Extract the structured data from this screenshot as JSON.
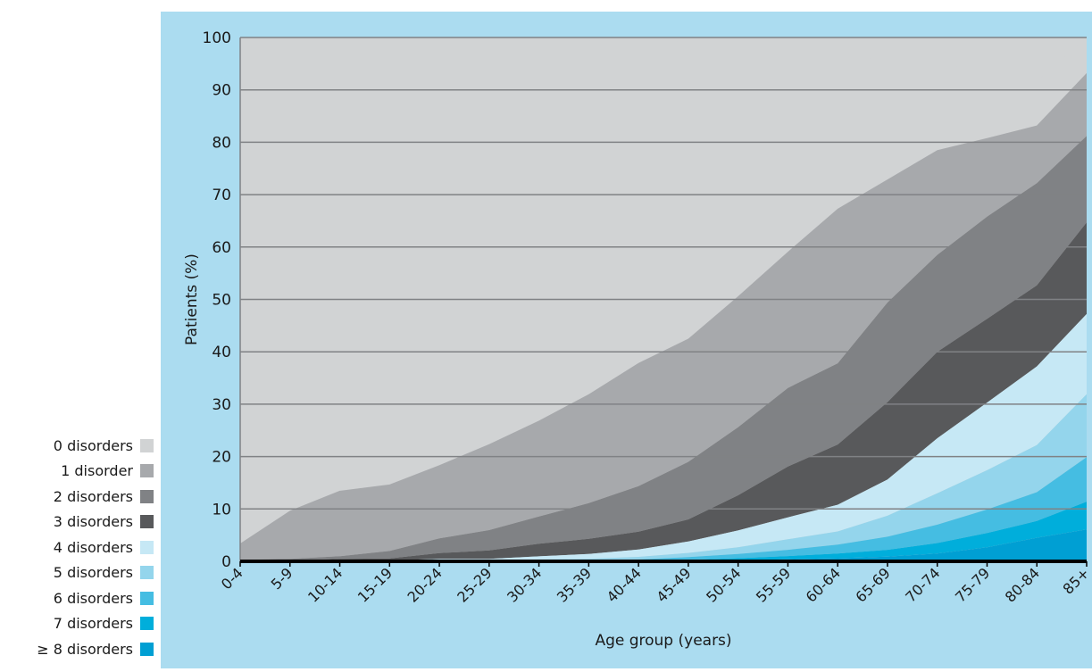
{
  "chart_data": {
    "type": "area",
    "stacked": true,
    "xlabel": "Age group (years)",
    "ylabel": "Patients (%)",
    "ylim": [
      0,
      100
    ],
    "yticks": [
      0,
      10,
      20,
      30,
      40,
      50,
      60,
      70,
      80,
      90,
      100
    ],
    "grid": true,
    "legend_position": "left-bottom",
    "categories": [
      "0-4",
      "5-9",
      "10-14",
      "15-19",
      "20-24",
      "25-29",
      "30-34",
      "35-39",
      "40-44",
      "45-49",
      "50-54",
      "55-59",
      "60-64",
      "65-69",
      "70-74",
      "75-79",
      "80-84",
      "85+"
    ],
    "series": [
      {
        "name": "0 disorders",
        "color": "#d1d3d4",
        "values": [
          96.5,
          90.3,
          86.5,
          85.3,
          81.5,
          77.5,
          72.5,
          67.5,
          62.5,
          56.5,
          47.5,
          38.5,
          30,
          22.5,
          17,
          12,
          8.5,
          6.7
        ]
      },
      {
        "name": "1 disorder",
        "color": "#a7a9ac",
        "values": [
          3.1,
          9.2,
          12.5,
          12.7,
          14,
          16.4,
          18.3,
          20.8,
          23.5,
          23.5,
          25,
          26,
          29.5,
          23.5,
          20,
          15,
          11,
          12
        ]
      },
      {
        "name": "2 disorders",
        "color": "#808285",
        "values": [
          0.2,
          0.3,
          0.5,
          1.4,
          2.8,
          3.9,
          5.2,
          6.8,
          8.7,
          11,
          13,
          15,
          15.5,
          19,
          18.5,
          19.5,
          19.5,
          16.5
        ]
      },
      {
        "name": "3 disorders",
        "color": "#58595b",
        "values": [
          0.1,
          0.1,
          0.3,
          0.4,
          1.1,
          1.6,
          2.4,
          2.9,
          3.4,
          4.2,
          6.7,
          9.7,
          11.5,
          14.8,
          16.5,
          16,
          15.5,
          17.5
        ]
      },
      {
        "name": "4 disorders",
        "color": "#c6e8f5",
        "values": [
          0,
          0.05,
          0.1,
          0.1,
          0.3,
          0.3,
          0.6,
          0.9,
          1.4,
          2.2,
          3.2,
          4.2,
          5.1,
          6.9,
          10.5,
          12.9,
          15,
          15.3
        ]
      },
      {
        "name": "5 disorders",
        "color": "#94d5ec",
        "values": [
          0,
          0.02,
          0.05,
          0.05,
          0.1,
          0.1,
          0.2,
          0.3,
          0.5,
          0.8,
          1.3,
          2,
          2.5,
          4,
          6,
          7.5,
          9,
          12
        ]
      },
      {
        "name": "6 disorders",
        "color": "#45bde2",
        "values": [
          0,
          0,
          0.02,
          0.02,
          0.05,
          0.05,
          0.1,
          0.15,
          0.2,
          0.5,
          0.8,
          1.2,
          1.7,
          2.5,
          3.5,
          4.5,
          5.5,
          8.5
        ]
      },
      {
        "name": "7 disorders",
        "color": "#00aedb",
        "values": [
          0,
          0,
          0,
          0,
          0.02,
          0.02,
          0.05,
          0.05,
          0.1,
          0.2,
          0.4,
          0.6,
          0.9,
          1.3,
          2,
          2.7,
          3.2,
          5.3
        ]
      },
      {
        "name": "≥ 8 disorders",
        "color": "#009fd3",
        "values": [
          0,
          0,
          0,
          0,
          0,
          0,
          0,
          0,
          0.05,
          0.1,
          0.2,
          0.4,
          0.6,
          0.9,
          1.5,
          2.7,
          4.5,
          6.1
        ]
      }
    ]
  },
  "colors": {
    "panel_background": "#abdcf0",
    "plot_background": "#d1d3d4",
    "gridline": "#808285",
    "axis": "#000000",
    "text": "#1a1a1a"
  }
}
